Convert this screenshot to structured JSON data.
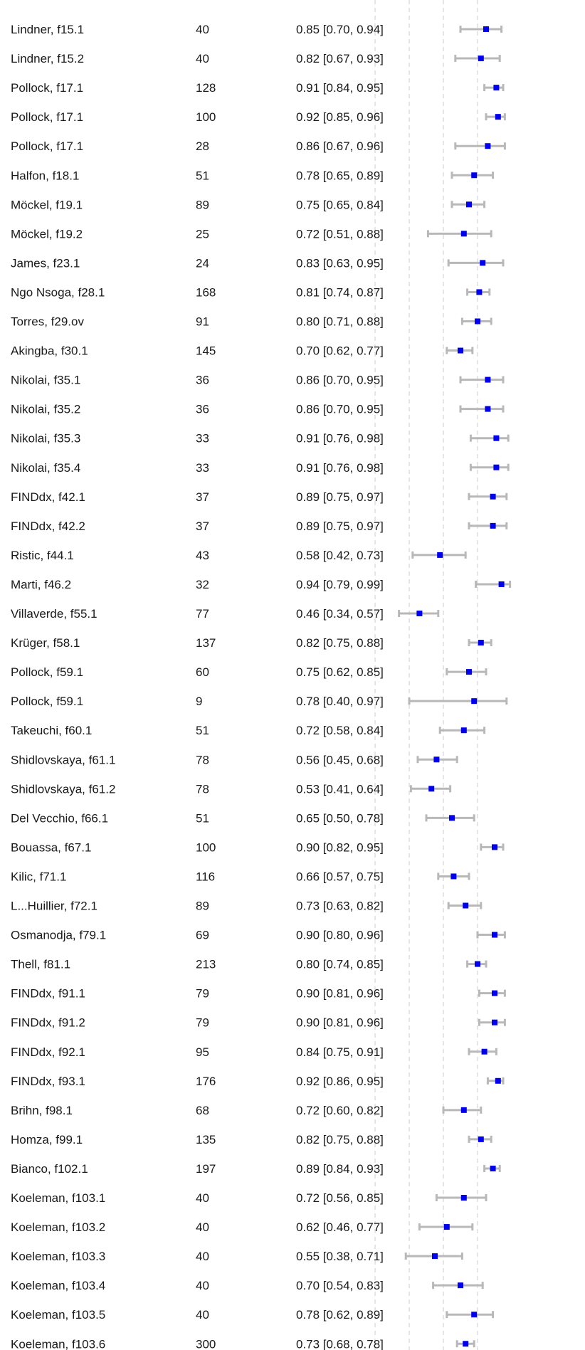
{
  "chart_data": {
    "type": "forest",
    "axis": {
      "xlim": [
        0.0,
        1.0
      ],
      "grid_ticks": [
        0.2,
        0.4,
        0.6,
        0.8
      ],
      "grid": "dashed-vertical"
    },
    "colors": {
      "point": "#0000ee",
      "ci": "#b8b8b8",
      "grid": "#cccccc",
      "text": "#1a1a1a"
    },
    "rows": [
      {
        "study": "Lindner, f15.1",
        "n": "40",
        "est_text": "0.85 [0.70, 0.94]",
        "est": 0.85,
        "lo": 0.7,
        "hi": 0.94
      },
      {
        "study": "Lindner, f15.2",
        "n": "40",
        "est_text": "0.82 [0.67, 0.93]",
        "est": 0.82,
        "lo": 0.67,
        "hi": 0.93
      },
      {
        "study": "Pollock, f17.1",
        "n": "128",
        "est_text": "0.91 [0.84, 0.95]",
        "est": 0.91,
        "lo": 0.84,
        "hi": 0.95
      },
      {
        "study": "Pollock, f17.1",
        "n": "100",
        "est_text": "0.92 [0.85, 0.96]",
        "est": 0.92,
        "lo": 0.85,
        "hi": 0.96
      },
      {
        "study": "Pollock, f17.1",
        "n": "28",
        "est_text": "0.86 [0.67, 0.96]",
        "est": 0.86,
        "lo": 0.67,
        "hi": 0.96
      },
      {
        "study": "Halfon, f18.1",
        "n": "51",
        "est_text": "0.78 [0.65, 0.89]",
        "est": 0.78,
        "lo": 0.65,
        "hi": 0.89
      },
      {
        "study": "Möckel, f19.1",
        "n": "89",
        "est_text": "0.75 [0.65, 0.84]",
        "est": 0.75,
        "lo": 0.65,
        "hi": 0.84
      },
      {
        "study": "Möckel, f19.2",
        "n": "25",
        "est_text": "0.72 [0.51, 0.88]",
        "est": 0.72,
        "lo": 0.51,
        "hi": 0.88
      },
      {
        "study": "James, f23.1",
        "n": "24",
        "est_text": "0.83 [0.63, 0.95]",
        "est": 0.83,
        "lo": 0.63,
        "hi": 0.95
      },
      {
        "study": "Ngo Nsoga, f28.1",
        "n": "168",
        "est_text": "0.81 [0.74, 0.87]",
        "est": 0.81,
        "lo": 0.74,
        "hi": 0.87
      },
      {
        "study": "Torres, f29.ov",
        "n": "91",
        "est_text": "0.80 [0.71, 0.88]",
        "est": 0.8,
        "lo": 0.71,
        "hi": 0.88
      },
      {
        "study": "Akingba, f30.1",
        "n": "145",
        "est_text": "0.70 [0.62, 0.77]",
        "est": 0.7,
        "lo": 0.62,
        "hi": 0.77
      },
      {
        "study": "Nikolai, f35.1",
        "n": "36",
        "est_text": "0.86 [0.70, 0.95]",
        "est": 0.86,
        "lo": 0.7,
        "hi": 0.95
      },
      {
        "study": "Nikolai, f35.2",
        "n": "36",
        "est_text": "0.86 [0.70, 0.95]",
        "est": 0.86,
        "lo": 0.7,
        "hi": 0.95
      },
      {
        "study": "Nikolai, f35.3",
        "n": "33",
        "est_text": "0.91 [0.76, 0.98]",
        "est": 0.91,
        "lo": 0.76,
        "hi": 0.98
      },
      {
        "study": "Nikolai, f35.4",
        "n": "33",
        "est_text": "0.91 [0.76, 0.98]",
        "est": 0.91,
        "lo": 0.76,
        "hi": 0.98
      },
      {
        "study": "FINDdx, f42.1",
        "n": "37",
        "est_text": "0.89 [0.75, 0.97]",
        "est": 0.89,
        "lo": 0.75,
        "hi": 0.97
      },
      {
        "study": "FINDdx, f42.2",
        "n": "37",
        "est_text": "0.89 [0.75, 0.97]",
        "est": 0.89,
        "lo": 0.75,
        "hi": 0.97
      },
      {
        "study": "Ristic, f44.1",
        "n": "43",
        "est_text": "0.58 [0.42, 0.73]",
        "est": 0.58,
        "lo": 0.42,
        "hi": 0.73
      },
      {
        "study": "Marti, f46.2",
        "n": "32",
        "est_text": "0.94 [0.79, 0.99]",
        "est": 0.94,
        "lo": 0.79,
        "hi": 0.99
      },
      {
        "study": "Villaverde, f55.1",
        "n": "77",
        "est_text": "0.46 [0.34, 0.57]",
        "est": 0.46,
        "lo": 0.34,
        "hi": 0.57
      },
      {
        "study": "Krüger, f58.1",
        "n": "137",
        "est_text": "0.82 [0.75, 0.88]",
        "est": 0.82,
        "lo": 0.75,
        "hi": 0.88
      },
      {
        "study": "Pollock, f59.1",
        "n": "60",
        "est_text": "0.75 [0.62, 0.85]",
        "est": 0.75,
        "lo": 0.62,
        "hi": 0.85
      },
      {
        "study": "Pollock, f59.1",
        "n": "9",
        "est_text": "0.78 [0.40, 0.97]",
        "est": 0.78,
        "lo": 0.4,
        "hi": 0.97
      },
      {
        "study": "Takeuchi, f60.1",
        "n": "51",
        "est_text": "0.72 [0.58, 0.84]",
        "est": 0.72,
        "lo": 0.58,
        "hi": 0.84
      },
      {
        "study": "Shidlovskaya, f61.1",
        "n": "78",
        "est_text": "0.56 [0.45, 0.68]",
        "est": 0.56,
        "lo": 0.45,
        "hi": 0.68
      },
      {
        "study": "Shidlovskaya, f61.2",
        "n": "78",
        "est_text": "0.53 [0.41, 0.64]",
        "est": 0.53,
        "lo": 0.41,
        "hi": 0.64
      },
      {
        "study": "Del Vecchio, f66.1",
        "n": "51",
        "est_text": "0.65 [0.50, 0.78]",
        "est": 0.65,
        "lo": 0.5,
        "hi": 0.78
      },
      {
        "study": "Bouassa, f67.1",
        "n": "100",
        "est_text": "0.90 [0.82, 0.95]",
        "est": 0.9,
        "lo": 0.82,
        "hi": 0.95
      },
      {
        "study": "Kilic, f71.1",
        "n": "116",
        "est_text": "0.66 [0.57, 0.75]",
        "est": 0.66,
        "lo": 0.57,
        "hi": 0.75
      },
      {
        "study": "L...Huillier, f72.1",
        "n": "89",
        "est_text": "0.73 [0.63, 0.82]",
        "est": 0.73,
        "lo": 0.63,
        "hi": 0.82
      },
      {
        "study": "Osmanodja, f79.1",
        "n": "69",
        "est_text": "0.90 [0.80, 0.96]",
        "est": 0.9,
        "lo": 0.8,
        "hi": 0.96
      },
      {
        "study": "Thell, f81.1",
        "n": "213",
        "est_text": "0.80 [0.74, 0.85]",
        "est": 0.8,
        "lo": 0.74,
        "hi": 0.85
      },
      {
        "study": "FINDdx, f91.1",
        "n": "79",
        "est_text": "0.90 [0.81, 0.96]",
        "est": 0.9,
        "lo": 0.81,
        "hi": 0.96
      },
      {
        "study": "FINDdx, f91.2",
        "n": "79",
        "est_text": "0.90 [0.81, 0.96]",
        "est": 0.9,
        "lo": 0.81,
        "hi": 0.96
      },
      {
        "study": "FINDdx, f92.1",
        "n": "95",
        "est_text": "0.84 [0.75, 0.91]",
        "est": 0.84,
        "lo": 0.75,
        "hi": 0.91
      },
      {
        "study": "FINDdx, f93.1",
        "n": "176",
        "est_text": "0.92 [0.86, 0.95]",
        "est": 0.92,
        "lo": 0.86,
        "hi": 0.95
      },
      {
        "study": "Brihn, f98.1",
        "n": "68",
        "est_text": "0.72 [0.60, 0.82]",
        "est": 0.72,
        "lo": 0.6,
        "hi": 0.82
      },
      {
        "study": "Homza, f99.1",
        "n": "135",
        "est_text": "0.82 [0.75, 0.88]",
        "est": 0.82,
        "lo": 0.75,
        "hi": 0.88
      },
      {
        "study": "Bianco, f102.1",
        "n": "197",
        "est_text": "0.89 [0.84, 0.93]",
        "est": 0.89,
        "lo": 0.84,
        "hi": 0.93
      },
      {
        "study": "Koeleman, f103.1",
        "n": "40",
        "est_text": "0.72 [0.56, 0.85]",
        "est": 0.72,
        "lo": 0.56,
        "hi": 0.85
      },
      {
        "study": "Koeleman, f103.2",
        "n": "40",
        "est_text": "0.62 [0.46, 0.77]",
        "est": 0.62,
        "lo": 0.46,
        "hi": 0.77
      },
      {
        "study": "Koeleman, f103.3",
        "n": "40",
        "est_text": "0.55 [0.38, 0.71]",
        "est": 0.55,
        "lo": 0.38,
        "hi": 0.71
      },
      {
        "study": "Koeleman, f103.4",
        "n": "40",
        "est_text": "0.70 [0.54, 0.83]",
        "est": 0.7,
        "lo": 0.54,
        "hi": 0.83
      },
      {
        "study": "Koeleman, f103.5",
        "n": "40",
        "est_text": "0.78 [0.62, 0.89]",
        "est": 0.78,
        "lo": 0.62,
        "hi": 0.89
      },
      {
        "study": "Koeleman, f103.6",
        "n": "300",
        "est_text": "0.73 [0.68, 0.78]",
        "est": 0.73,
        "lo": 0.68,
        "hi": 0.78
      }
    ]
  }
}
